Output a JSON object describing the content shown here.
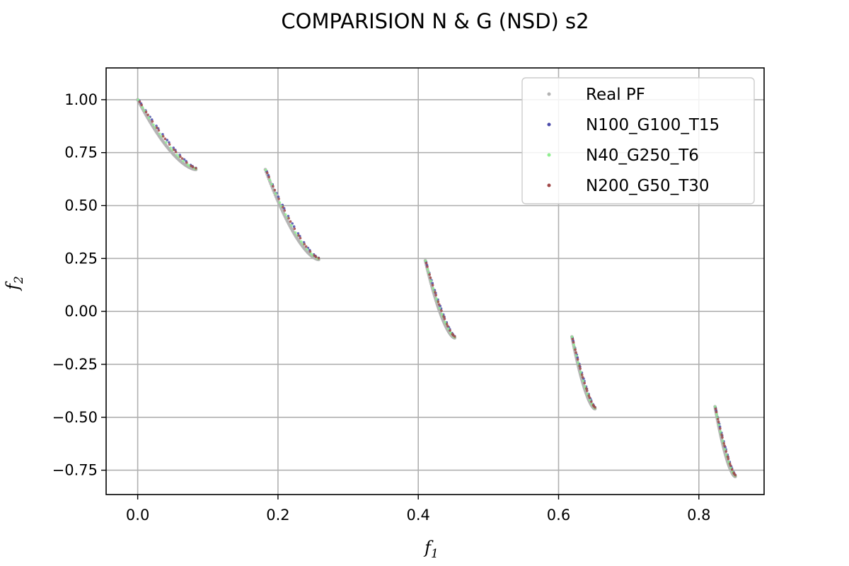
{
  "chart_data": {
    "type": "scatter",
    "title": "COMPARISION N & G (NSD) s2",
    "xlabel": "f",
    "xlabel_sub": "1",
    "ylabel": "f",
    "ylabel_sub": "2",
    "xlim": [
      -0.045,
      0.893
    ],
    "ylim": [
      -0.865,
      1.15
    ],
    "xticks": [
      0.0,
      0.2,
      0.4,
      0.6,
      0.8
    ],
    "xtick_labels": [
      "0.0",
      "0.2",
      "0.4",
      "0.6",
      "0.8"
    ],
    "yticks": [
      1.0,
      0.75,
      0.5,
      0.25,
      0.0,
      -0.25,
      -0.5,
      -0.75
    ],
    "ytick_labels": [
      "1.00",
      "0.75",
      "0.50",
      "0.25",
      "0.00",
      "−0.25",
      "−0.50",
      "−0.75"
    ],
    "grid": true,
    "legend_position": "top-right",
    "segments": [
      {
        "x0": 0.0,
        "x1": 0.083,
        "y0": 1.0,
        "y1": 0.67
      },
      {
        "x0": 0.182,
        "x1": 0.258,
        "y0": 0.67,
        "y1": 0.245
      },
      {
        "x0": 0.41,
        "x1": 0.452,
        "y0": 0.24,
        "y1": -0.125
      },
      {
        "x0": 0.619,
        "x1": 0.652,
        "y0": -0.12,
        "y1": -0.46
      },
      {
        "x0": 0.823,
        "x1": 0.852,
        "y0": -0.45,
        "y1": -0.78
      }
    ],
    "series": [
      {
        "name": "Real PF",
        "color": "#b3b3b3",
        "points_per_segment": 60,
        "offset": 0.0,
        "point_radius": 2.4
      },
      {
        "name": "N100_G100_T15",
        "color": "#4b4baa",
        "points_per_segment": 18,
        "offset": 0.025,
        "point_radius": 1.8
      },
      {
        "name": "N40_G250_T6",
        "color": "#90ee90",
        "points_per_segment": 18,
        "offset": 0.012,
        "point_radius": 1.8
      },
      {
        "name": "N200_G50_T30",
        "color": "#a04848",
        "points_per_segment": 18,
        "offset": 0.02,
        "point_radius": 1.8
      }
    ]
  }
}
